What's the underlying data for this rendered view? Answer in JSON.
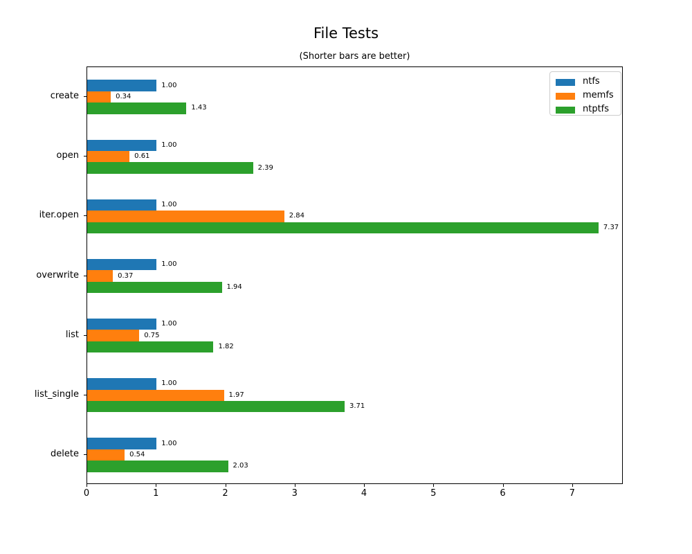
{
  "chart_data": {
    "type": "bar",
    "orientation": "horizontal",
    "title": "File Tests",
    "subtitle": "(Shorter bars are better)",
    "categories": [
      "create",
      "open",
      "iter.open",
      "overwrite",
      "list",
      "list_single",
      "delete"
    ],
    "series": [
      {
        "name": "ntfs",
        "color": "#1f77b4",
        "values": [
          1.0,
          1.0,
          1.0,
          1.0,
          1.0,
          1.0,
          1.0
        ]
      },
      {
        "name": "memfs",
        "color": "#ff7f0e",
        "values": [
          0.34,
          0.61,
          2.84,
          0.37,
          0.75,
          1.97,
          0.54
        ]
      },
      {
        "name": "ntptfs",
        "color": "#2ca02c",
        "values": [
          1.43,
          2.39,
          7.37,
          1.94,
          1.82,
          3.71,
          2.03
        ]
      }
    ],
    "bar_value_labels": {
      "create": [
        "1.00",
        "0.34",
        "1.43"
      ],
      "open": [
        "1.00",
        "0.61",
        "2.39"
      ],
      "iter.open": [
        "1.00",
        "2.84",
        "7.37"
      ],
      "overwrite": [
        "1.00",
        "0.37",
        "1.94"
      ],
      "list": [
        "1.00",
        "0.75",
        "1.82"
      ],
      "list_single": [
        "1.00",
        "1.97",
        "3.71"
      ],
      "delete": [
        "1.00",
        "0.54",
        "2.03"
      ]
    },
    "xlim": [
      0,
      7.73
    ],
    "xticks": [
      0,
      1,
      2,
      3,
      4,
      5,
      6,
      7
    ],
    "legend": {
      "position": "upper right",
      "labels": [
        "ntfs",
        "memfs",
        "ntptfs"
      ]
    },
    "grid": false,
    "background": "#ffffff",
    "text_color": "#000000"
  }
}
